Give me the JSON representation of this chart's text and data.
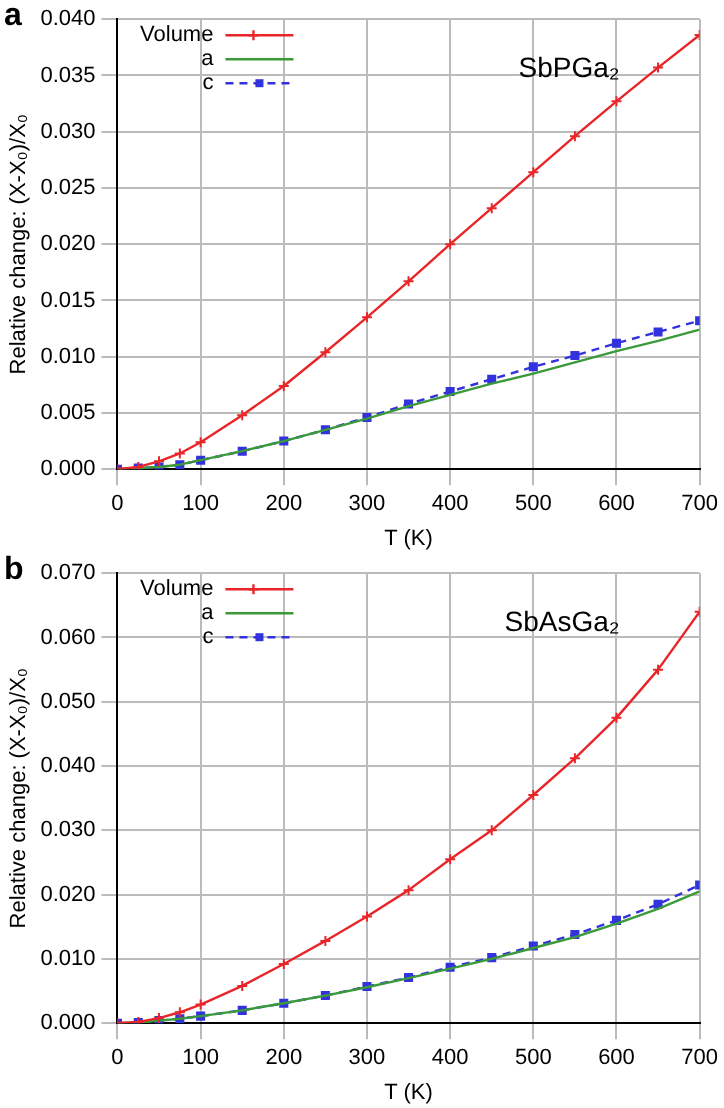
{
  "chart_data": [
    {
      "type": "line",
      "annotations": [
        "a",
        "SbPGa₂"
      ],
      "xlabel": "T (K)",
      "ylabel": "Relative change: (X-X₀)/X₀",
      "legend": "top left",
      "grid": true,
      "x": [
        0,
        25,
        50,
        75,
        100,
        150,
        200,
        250,
        300,
        350,
        400,
        450,
        500,
        550,
        600,
        650,
        700
      ],
      "xlim": [
        0,
        700
      ],
      "xticks": [
        0,
        100,
        200,
        300,
        400,
        500,
        600,
        700
      ],
      "ylim": [
        0,
        0.04
      ],
      "yticks": [
        {
          "value": 0,
          "label": "0.000"
        },
        {
          "value": 0.005,
          "label": "0.005"
        },
        {
          "value": 0.01,
          "label": "0.010"
        },
        {
          "value": 0.015,
          "label": "0.015"
        },
        {
          "value": 0.02,
          "label": "0.020"
        },
        {
          "value": 0.025,
          "label": "0.025"
        },
        {
          "value": 0.03,
          "label": "0.030"
        },
        {
          "value": 0.035,
          "label": "0.035"
        },
        {
          "value": 0.04,
          "label": "0.040"
        }
      ],
      "series": [
        {
          "name": "Volume",
          "color": "#e8262a",
          "marker": "cross",
          "line_style": "solid",
          "values": [
            0,
            0.0002,
            0.0007,
            0.0014,
            0.0024,
            0.0048,
            0.0074,
            0.0104,
            0.0135,
            0.0167,
            0.02,
            0.0232,
            0.0264,
            0.0296,
            0.0327,
            0.0357,
            0.0386
          ]
        },
        {
          "name": "a",
          "color": "#3a9a3a",
          "marker": "none",
          "line_style": "solid",
          "values": [
            0,
            0.0001,
            0.0002,
            0.0004,
            0.0008,
            0.0016,
            0.0025,
            0.0035,
            0.0045,
            0.0056,
            0.0066,
            0.0076,
            0.0085,
            0.0095,
            0.0105,
            0.0114,
            0.0124
          ]
        },
        {
          "name": "c",
          "color": "#3333dd",
          "marker": "square",
          "line_style": "dashed",
          "values": [
            0,
            0.0001,
            0.0002,
            0.0004,
            0.0008,
            0.0016,
            0.0025,
            0.0035,
            0.0046,
            0.0058,
            0.0069,
            0.008,
            0.0091,
            0.0101,
            0.0112,
            0.0122,
            0.0132
          ]
        }
      ]
    },
    {
      "type": "line",
      "annotations": [
        "b",
        "SbAsGa₂"
      ],
      "xlabel": "T (K)",
      "ylabel": "Relative change: (X-X₀)/X₀",
      "legend": "top left",
      "grid": true,
      "x": [
        0,
        25,
        50,
        75,
        100,
        150,
        200,
        250,
        300,
        350,
        400,
        450,
        500,
        550,
        600,
        650,
        700
      ],
      "xlim": [
        0,
        700
      ],
      "xticks": [
        0,
        100,
        200,
        300,
        400,
        500,
        600,
        700
      ],
      "ylim": [
        0,
        0.07
      ],
      "yticks": [
        {
          "value": 0,
          "label": "0.000"
        },
        {
          "value": 0.01,
          "label": "0.010"
        },
        {
          "value": 0.02,
          "label": "0.020"
        },
        {
          "value": 0.03,
          "label": "0.030"
        },
        {
          "value": 0.04,
          "label": "0.040"
        },
        {
          "value": 0.05,
          "label": "0.050"
        },
        {
          "value": 0.06,
          "label": "0.060"
        },
        {
          "value": 0.07,
          "label": "0.070"
        }
      ],
      "series": [
        {
          "name": "Volume",
          "color": "#e8262a",
          "marker": "cross",
          "line_style": "solid",
          "values": [
            0,
            0.0002,
            0.0008,
            0.0017,
            0.0029,
            0.0058,
            0.0092,
            0.0128,
            0.0166,
            0.0207,
            0.0255,
            0.03,
            0.0355,
            0.0412,
            0.0475,
            0.055,
            0.064
          ]
        },
        {
          "name": "a",
          "color": "#3a9a3a",
          "marker": "none",
          "line_style": "solid",
          "values": [
            0,
            0.0001,
            0.0004,
            0.0007,
            0.0011,
            0.002,
            0.0031,
            0.0043,
            0.0056,
            0.007,
            0.0085,
            0.01,
            0.0117,
            0.0134,
            0.0155,
            0.0178,
            0.0205
          ]
        },
        {
          "name": "c",
          "color": "#3333dd",
          "marker": "square",
          "line_style": "dashed",
          "values": [
            0,
            0.0001,
            0.0004,
            0.0007,
            0.0011,
            0.002,
            0.0031,
            0.0043,
            0.0057,
            0.0071,
            0.0087,
            0.0102,
            0.012,
            0.0138,
            0.016,
            0.0185,
            0.0215
          ]
        }
      ]
    }
  ]
}
